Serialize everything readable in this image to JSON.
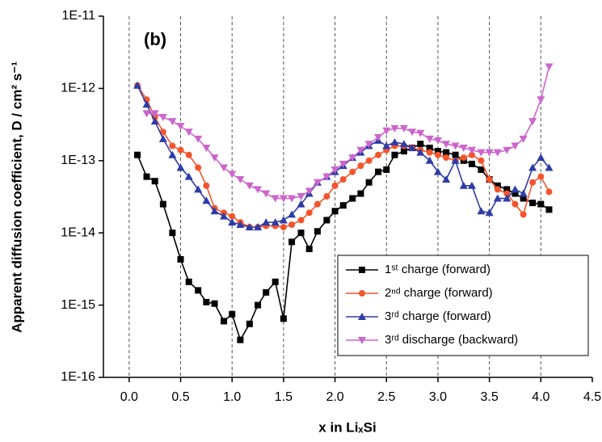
{
  "chart_data": {
    "type": "line",
    "annotation": "(b)",
    "xlabel": "x in LiₓSi",
    "ylabel": "Apparent diffusion coefficient, D / cm² s⁻¹",
    "xlim": [
      -0.25,
      4.5
    ],
    "xticks": [
      {
        "value": 0,
        "label": "0.0"
      },
      0.5,
      {
        "value": 1,
        "label": "1.0"
      },
      1.5,
      {
        "value": 2,
        "label": "2.0"
      },
      2.5,
      {
        "value": 3,
        "label": "3.0"
      },
      3.5,
      {
        "value": 4,
        "label": "4.0"
      },
      4.5
    ],
    "ylim": [
      1e-16,
      1e-11
    ],
    "yticks": [
      {
        "value": 1e-16,
        "label": "1E-16"
      },
      {
        "value": 1e-15,
        "label": "1E-15"
      },
      {
        "value": 1e-14,
        "label": "1E-14"
      },
      {
        "value": 1e-13,
        "label": "1E-13"
      },
      {
        "value": 1e-12,
        "label": "1E-12"
      },
      {
        "value": 1e-11,
        "label": "1E-11"
      }
    ],
    "log_y": true,
    "grid": "x",
    "legend": "lower right",
    "series": [
      {
        "name": "1ˢᵗ charge (forward)",
        "color": "#000000",
        "marker": "square",
        "x": [
          0.08,
          0.17,
          0.25,
          0.33,
          0.42,
          0.5,
          0.58,
          0.67,
          0.75,
          0.83,
          0.92,
          1.0,
          1.08,
          1.17,
          1.25,
          1.33,
          1.42,
          1.5,
          1.58,
          1.67,
          1.75,
          1.83,
          1.92,
          2.0,
          2.08,
          2.17,
          2.25,
          2.33,
          2.42,
          2.5,
          2.58,
          2.67,
          2.75,
          2.83,
          2.92,
          3.0,
          3.08,
          3.17,
          3.25,
          3.33,
          3.42,
          3.5,
          3.58,
          3.67,
          3.75,
          3.83,
          3.92,
          4.0,
          4.08
        ],
        "values": [
          1.2e-13,
          6e-14,
          5.2e-14,
          2.5e-14,
          1e-14,
          4.3e-15,
          2.1e-15,
          1.6e-15,
          1.1e-15,
          1.05e-15,
          6e-16,
          7.5e-16,
          3.3e-16,
          5.5e-16,
          1e-15,
          1.5e-15,
          2.1e-15,
          6.5e-16,
          7.5e-15,
          1e-14,
          6e-15,
          1.05e-14,
          1.5e-14,
          2e-14,
          2.4e-14,
          3e-14,
          3.5e-14,
          5e-14,
          7e-14,
          7.5e-14,
          1.2e-13,
          1.35e-13,
          1.5e-13,
          1.7e-13,
          1.5e-13,
          1.35e-13,
          1.3e-13,
          1.2e-13,
          1e-13,
          9e-14,
          7.5e-14,
          5.5e-14,
          4.5e-14,
          4e-14,
          3.5e-14,
          3e-14,
          2.6e-14,
          2.5e-14,
          2.1e-14
        ]
      },
      {
        "name": "2ⁿᵈ charge (forward)",
        "color": "#f4542c",
        "marker": "circle",
        "x": [
          0.08,
          0.17,
          0.25,
          0.33,
          0.42,
          0.5,
          0.58,
          0.67,
          0.75,
          0.83,
          0.92,
          1.0,
          1.08,
          1.17,
          1.25,
          1.33,
          1.42,
          1.5,
          1.58,
          1.67,
          1.75,
          1.83,
          1.92,
          2.0,
          2.08,
          2.17,
          2.25,
          2.33,
          2.42,
          2.5,
          2.58,
          2.67,
          2.75,
          2.83,
          2.92,
          3.0,
          3.08,
          3.17,
          3.25,
          3.33,
          3.42,
          3.5,
          3.58,
          3.67,
          3.75,
          3.83,
          3.92,
          4.0,
          4.08
        ],
        "values": [
          1.1e-12,
          7e-13,
          4e-13,
          2.5e-13,
          1.6e-13,
          1.4e-13,
          1.2e-13,
          8e-14,
          4.5e-14,
          2.2e-14,
          1.9e-14,
          1.7e-14,
          1.4e-14,
          1.2e-14,
          1.2e-14,
          1.25e-14,
          1.25e-14,
          1.2e-14,
          1.3e-14,
          1.5e-14,
          1.9e-14,
          2.5e-14,
          3.2e-14,
          4.5e-14,
          5.5e-14,
          7e-14,
          8.5e-14,
          1e-13,
          1.2e-13,
          1.4e-13,
          1.6e-13,
          1.6e-13,
          1.5e-13,
          1.4e-13,
          1.3e-13,
          1.2e-13,
          1.1e-13,
          1e-13,
          1.1e-13,
          1.2e-13,
          1e-13,
          5.5e-14,
          4e-14,
          3.5e-14,
          2.5e-14,
          1.8e-14,
          5e-14,
          6e-14,
          3.7e-14
        ]
      },
      {
        "name": "3ʳᵈ charge (forward)",
        "color": "#2e3ca6",
        "marker": "triangle-up",
        "x": [
          0.08,
          0.17,
          0.25,
          0.33,
          0.42,
          0.5,
          0.58,
          0.67,
          0.75,
          0.83,
          0.92,
          1.0,
          1.08,
          1.17,
          1.25,
          1.33,
          1.42,
          1.5,
          1.58,
          1.67,
          1.75,
          1.83,
          1.92,
          2.0,
          2.08,
          2.17,
          2.25,
          2.33,
          2.42,
          2.5,
          2.58,
          2.67,
          2.75,
          2.83,
          2.92,
          3.0,
          3.08,
          3.17,
          3.25,
          3.33,
          3.42,
          3.5,
          3.58,
          3.67,
          3.75,
          3.83,
          3.92,
          4.0,
          4.08
        ],
        "values": [
          1.1e-12,
          6e-13,
          3.5e-13,
          2e-13,
          1.2e-13,
          8e-14,
          6e-14,
          4e-14,
          2.8e-14,
          2e-14,
          1.7e-14,
          1.4e-14,
          1.3e-14,
          1.2e-14,
          1.2e-14,
          1.4e-14,
          1.4e-14,
          1.5e-14,
          1.8e-14,
          2.5e-14,
          3.5e-14,
          5e-14,
          6e-14,
          7e-14,
          8.5e-14,
          1.1e-13,
          1.3e-13,
          1.6e-13,
          1.9e-13,
          1.6e-13,
          1.8e-13,
          1.7e-13,
          1.5e-13,
          1.3e-13,
          1e-13,
          7e-14,
          5.5e-14,
          1e-13,
          4.5e-14,
          4.5e-14,
          2e-14,
          1.9e-14,
          3e-14,
          3e-14,
          4e-14,
          3.5e-14,
          8e-14,
          1.1e-13,
          8e-14
        ]
      },
      {
        "name": "3ʳᵈ discharge (backward)",
        "color": "#cc66cc",
        "marker": "triangle-down",
        "x": [
          0.17,
          0.25,
          0.33,
          0.42,
          0.5,
          0.58,
          0.67,
          0.75,
          0.83,
          0.92,
          1.0,
          1.08,
          1.17,
          1.25,
          1.33,
          1.42,
          1.5,
          1.58,
          1.67,
          1.75,
          1.83,
          1.92,
          2.0,
          2.08,
          2.17,
          2.25,
          2.33,
          2.42,
          2.5,
          2.58,
          2.67,
          2.75,
          2.83,
          2.92,
          3.0,
          3.08,
          3.17,
          3.25,
          3.33,
          3.42,
          3.5,
          3.58,
          3.67,
          3.75,
          3.83,
          3.92,
          4.0,
          4.08
        ],
        "values": [
          4.5e-13,
          4.5e-13,
          4e-13,
          3.5e-13,
          3e-13,
          2.5e-13,
          2e-13,
          1.5e-13,
          1.1e-13,
          8e-14,
          6.5e-14,
          5.5e-14,
          4.5e-14,
          4e-14,
          3.5e-14,
          3e-14,
          3e-14,
          3e-14,
          3.2e-14,
          3.8e-14,
          5e-14,
          6e-14,
          7.5e-14,
          9e-14,
          1.1e-13,
          1.4e-13,
          1.7e-13,
          2.1e-13,
          2.6e-13,
          2.8e-13,
          2.8e-13,
          2.5e-13,
          2.4e-13,
          2e-13,
          1.9e-13,
          1.7e-13,
          1.6e-13,
          1.5e-13,
          1.4e-13,
          1.3e-13,
          1.3e-13,
          1.3e-13,
          1.4e-13,
          1.6e-13,
          2e-13,
          3.5e-13,
          7e-13,
          2e-12
        ]
      }
    ]
  }
}
